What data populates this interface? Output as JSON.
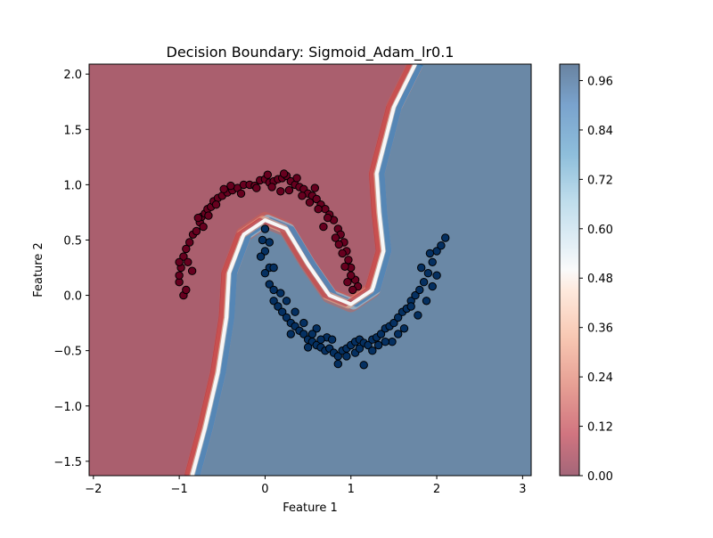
{
  "chart_data": {
    "type": "scatter",
    "title": "Decision Boundary: Sigmoid_Adam_lr0.1",
    "xlabel": "Feature 1",
    "ylabel": "Feature 2",
    "xlim": [
      -2.05,
      3.1
    ],
    "ylim": [
      -1.63,
      2.09
    ],
    "xticks": [
      -2,
      -1,
      0,
      1,
      2,
      3
    ],
    "yticks": [
      -1.5,
      -1.0,
      -0.5,
      0.0,
      0.5,
      1.0,
      1.5,
      2.0
    ],
    "xtick_labels": [
      "−2",
      "−1",
      "0",
      "1",
      "2",
      "3"
    ],
    "ytick_labels": [
      "−1.5",
      "−1.0",
      "−0.5",
      "0.0",
      "0.5",
      "1.0",
      "1.5",
      "2.0"
    ],
    "grid": false,
    "background": {
      "type": "contourf",
      "colormap": "RdBu",
      "alpha": 0.6,
      "description_levels": "predicted probability of class 1",
      "boundary_path": [
        [
          -0.85,
          -1.63
        ],
        [
          -0.7,
          -1.2
        ],
        [
          -0.55,
          -0.7
        ],
        [
          -0.45,
          -0.2
        ],
        [
          -0.42,
          0.2
        ],
        [
          -0.25,
          0.55
        ],
        [
          0.0,
          0.68
        ],
        [
          0.25,
          0.6
        ],
        [
          0.5,
          0.28
        ],
        [
          0.75,
          0.0
        ],
        [
          1.0,
          -0.08
        ],
        [
          1.25,
          0.05
        ],
        [
          1.38,
          0.4
        ],
        [
          1.33,
          0.75
        ],
        [
          1.3,
          1.1
        ],
        [
          1.5,
          1.7
        ],
        [
          1.75,
          2.09
        ]
      ]
    },
    "colorbar": {
      "ticks": [
        0.0,
        0.12,
        0.24,
        0.36,
        0.48,
        0.6,
        0.72,
        0.84,
        0.96
      ],
      "tick_labels": [
        "0.00",
        "0.12",
        "0.24",
        "0.36",
        "0.48",
        "0.60",
        "0.72",
        "0.84",
        "0.96"
      ],
      "range": [
        0.0,
        1.0
      ]
    },
    "series": [
      {
        "color": "#67001f",
        "points": [
          [
            -1.0,
            0.12
          ],
          [
            -1.0,
            0.18
          ],
          [
            -0.98,
            0.25
          ],
          [
            -0.95,
            0.35
          ],
          [
            -0.92,
            0.42
          ],
          [
            -0.88,
            0.48
          ],
          [
            -0.84,
            0.55
          ],
          [
            -0.8,
            0.58
          ],
          [
            -0.76,
            0.66
          ],
          [
            -0.74,
            0.71
          ],
          [
            -0.7,
            0.74
          ],
          [
            -0.67,
            0.78
          ],
          [
            -0.63,
            0.8
          ],
          [
            -0.6,
            0.85
          ],
          [
            -0.55,
            0.88
          ],
          [
            -0.5,
            0.9
          ],
          [
            -0.44,
            0.93
          ],
          [
            -0.38,
            0.95
          ],
          [
            -0.32,
            0.97
          ],
          [
            -0.25,
            1.0
          ],
          [
            -0.18,
            1.0
          ],
          [
            -0.12,
            0.99
          ],
          [
            -0.06,
            1.04
          ],
          [
            0.0,
            1.05
          ],
          [
            0.05,
            1.02
          ],
          [
            0.1,
            1.03
          ],
          [
            0.15,
            1.05
          ],
          [
            0.2,
            1.06
          ],
          [
            0.25,
            1.08
          ],
          [
            0.3,
            1.03
          ],
          [
            0.35,
            1.0
          ],
          [
            0.4,
            0.98
          ],
          [
            0.45,
            0.96
          ],
          [
            0.5,
            0.92
          ],
          [
            0.55,
            0.9
          ],
          [
            0.6,
            0.87
          ],
          [
            0.65,
            0.82
          ],
          [
            0.7,
            0.78
          ],
          [
            0.75,
            0.73
          ],
          [
            0.8,
            0.68
          ],
          [
            0.85,
            0.6
          ],
          [
            0.88,
            0.55
          ],
          [
            0.92,
            0.48
          ],
          [
            0.95,
            0.4
          ],
          [
            0.97,
            0.32
          ],
          [
            1.0,
            0.25
          ],
          [
            1.05,
            0.14
          ],
          [
            1.08,
            0.08
          ],
          [
            -0.95,
            0.0
          ],
          [
            -0.92,
            0.05
          ],
          [
            -0.85,
            0.22
          ],
          [
            -0.72,
            0.62
          ],
          [
            -0.57,
            0.82
          ],
          [
            -0.4,
            0.99
          ],
          [
            -0.28,
            0.92
          ],
          [
            -0.1,
            0.97
          ],
          [
            0.08,
            0.98
          ],
          [
            0.22,
            1.1
          ],
          [
            0.28,
            0.95
          ],
          [
            0.43,
            0.9
          ],
          [
            0.58,
            0.97
          ],
          [
            0.62,
            0.78
          ],
          [
            0.73,
            0.7
          ],
          [
            0.82,
            0.52
          ],
          [
            0.9,
            0.38
          ],
          [
            0.93,
            0.26
          ],
          [
            1.0,
            0.18
          ],
          [
            -0.78,
            0.7
          ],
          [
            -0.66,
            0.72
          ],
          [
            -0.48,
            0.96
          ],
          [
            0.18,
            0.94
          ],
          [
            0.37,
            1.06
          ],
          [
            0.52,
            0.84
          ],
          [
            0.68,
            0.62
          ],
          [
            0.86,
            0.46
          ],
          [
            0.96,
            0.12
          ],
          [
            1.02,
            0.05
          ],
          [
            -1.0,
            0.3
          ],
          [
            -0.9,
            0.3
          ],
          [
            0.03,
            1.09
          ]
        ]
      },
      {
        "color": "#053061",
        "points": [
          [
            0.0,
            0.6
          ],
          [
            0.0,
            0.4
          ],
          [
            -0.05,
            0.35
          ],
          [
            0.05,
            0.25
          ],
          [
            0.0,
            0.2
          ],
          [
            0.05,
            0.1
          ],
          [
            0.1,
            0.05
          ],
          [
            0.1,
            -0.05
          ],
          [
            0.15,
            -0.1
          ],
          [
            0.2,
            -0.15
          ],
          [
            0.25,
            -0.2
          ],
          [
            0.3,
            -0.25
          ],
          [
            0.35,
            -0.28
          ],
          [
            0.4,
            -0.32
          ],
          [
            0.45,
            -0.35
          ],
          [
            0.5,
            -0.4
          ],
          [
            0.55,
            -0.42
          ],
          [
            0.6,
            -0.45
          ],
          [
            0.65,
            -0.47
          ],
          [
            0.7,
            -0.5
          ],
          [
            0.75,
            -0.48
          ],
          [
            0.8,
            -0.52
          ],
          [
            0.85,
            -0.55
          ],
          [
            0.9,
            -0.5
          ],
          [
            0.95,
            -0.48
          ],
          [
            1.0,
            -0.45
          ],
          [
            1.05,
            -0.42
          ],
          [
            1.1,
            -0.4
          ],
          [
            1.15,
            -0.43
          ],
          [
            1.2,
            -0.45
          ],
          [
            1.25,
            -0.4
          ],
          [
            1.3,
            -0.38
          ],
          [
            1.35,
            -0.35
          ],
          [
            1.4,
            -0.3
          ],
          [
            1.45,
            -0.28
          ],
          [
            1.5,
            -0.25
          ],
          [
            1.55,
            -0.2
          ],
          [
            1.6,
            -0.15
          ],
          [
            1.65,
            -0.12
          ],
          [
            1.7,
            -0.05
          ],
          [
            1.75,
            0.0
          ],
          [
            1.8,
            0.05
          ],
          [
            1.85,
            0.12
          ],
          [
            1.9,
            0.2
          ],
          [
            1.95,
            0.3
          ],
          [
            2.0,
            0.4
          ],
          [
            2.05,
            0.45
          ],
          [
            2.1,
            0.52
          ],
          [
            0.85,
            -0.62
          ],
          [
            1.15,
            -0.63
          ],
          [
            0.6,
            -0.3
          ],
          [
            0.72,
            -0.38
          ],
          [
            1.05,
            -0.52
          ],
          [
            1.32,
            -0.45
          ],
          [
            1.48,
            -0.42
          ],
          [
            1.62,
            -0.3
          ],
          [
            1.78,
            -0.18
          ],
          [
            1.88,
            -0.05
          ],
          [
            1.95,
            0.08
          ],
          [
            2.0,
            0.18
          ],
          [
            0.25,
            -0.05
          ],
          [
            0.35,
            -0.15
          ],
          [
            0.3,
            -0.35
          ],
          [
            0.45,
            -0.25
          ],
          [
            0.55,
            -0.35
          ],
          [
            0.65,
            -0.4
          ],
          [
            0.78,
            -0.4
          ],
          [
            0.95,
            -0.55
          ],
          [
            1.1,
            -0.48
          ],
          [
            1.25,
            -0.5
          ],
          [
            1.4,
            -0.42
          ],
          [
            1.55,
            -0.35
          ],
          [
            1.7,
            -0.1
          ],
          [
            1.82,
            0.25
          ],
          [
            0.1,
            0.25
          ],
          [
            -0.03,
            0.5
          ],
          [
            0.05,
            0.48
          ],
          [
            0.18,
            0.02
          ],
          [
            1.92,
            0.38
          ],
          [
            0.5,
            -0.47
          ]
        ]
      }
    ]
  }
}
